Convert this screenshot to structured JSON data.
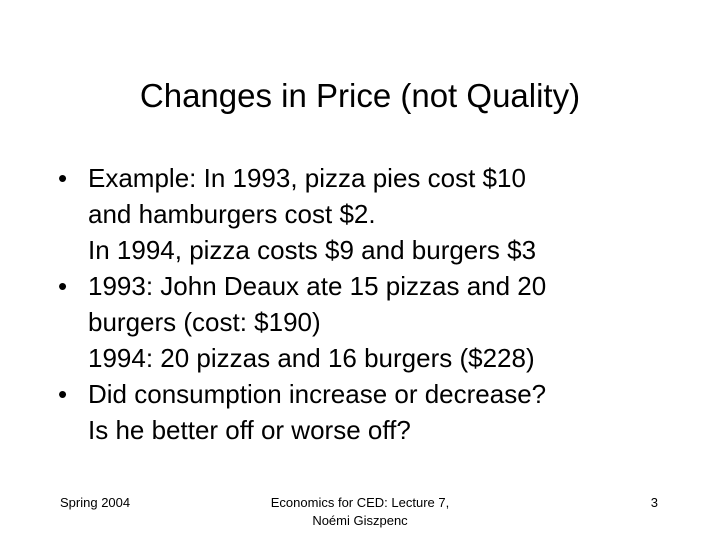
{
  "slide": {
    "title": "Changes in Price (not Quality)",
    "bullet_symbol": "•",
    "bullets": [
      {
        "lines": [
          "Example: In 1993, pizza pies cost $10",
          "and hamburgers cost $2.",
          "In 1994, pizza costs $9 and burgers $3"
        ]
      },
      {
        "lines": [
          "1993: John Deaux ate 15 pizzas and 20",
          "burgers (cost: $190)",
          "1994: 20 pizzas and 16 burgers ($228)"
        ]
      },
      {
        "lines": [
          "Did consumption increase or decrease?",
          "Is he better off or worse off?"
        ]
      }
    ]
  },
  "footer": {
    "left": "Spring 2004",
    "center_line1": "Economics for CED: Lecture 7,",
    "center_line2": "Noémi Giszpenc",
    "page_number": "3"
  }
}
